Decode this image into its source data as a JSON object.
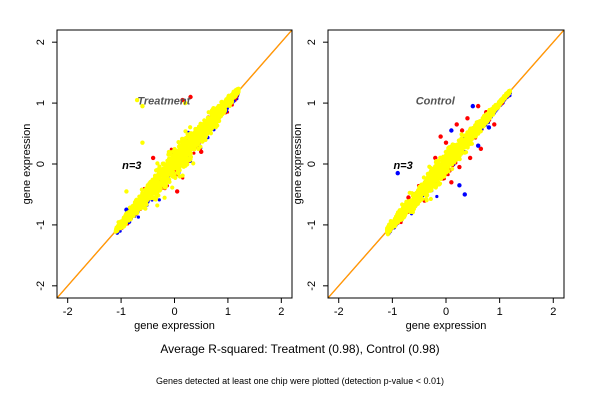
{
  "captions": {
    "summary": "Average R-squared: Treatment (0.98), Control (0.98)",
    "note": "Genes detected at least one chip were plotted (detection p-value < 0.01)"
  },
  "colors": {
    "point_main": "#ffff00",
    "point_red": "#ff0000",
    "point_blue": "#0000ff",
    "line_identity": "#ff0000",
    "line_fit": "#ffa500"
  },
  "chart_data": [
    {
      "type": "scatter",
      "title": "",
      "panel_label": "Treatment",
      "annotation": "n=3",
      "xlabel": "gene expression",
      "ylabel": "gene expression",
      "xlim": [
        -2.2,
        2.2
      ],
      "ylim": [
        -2.2,
        2.2
      ],
      "xticks": [
        -2,
        -1,
        0,
        1,
        2
      ],
      "yticks": [
        -2,
        -1,
        0,
        1,
        2
      ],
      "grid": false,
      "reference_lines": [
        {
          "name": "identity",
          "slope": 1,
          "intercept": 0,
          "color": "#ff0000"
        },
        {
          "name": "fit",
          "slope": 1,
          "intercept": 0,
          "color": "#ffa500"
        }
      ],
      "point_cloud": {
        "x_range": [
          -1.1,
          1.2
        ],
        "center": [
          0.05,
          0.1
        ],
        "max_spread": 0.3,
        "outlier_reach": 0.45
      },
      "series": [
        {
          "color": "#ff0000",
          "values": [
            [
              0.15,
              1.05
            ],
            [
              0.3,
              1.1
            ],
            [
              -0.4,
              0.1
            ],
            [
              -0.2,
              -0.3
            ],
            [
              0.5,
              0.2
            ],
            [
              0.05,
              -0.45
            ]
          ]
        },
        {
          "color": "#0000ff",
          "values": [
            [
              -0.9,
              -0.75
            ],
            [
              -0.85,
              -0.95
            ],
            [
              -0.3,
              -0.4
            ],
            [
              0.6,
              0.45
            ]
          ]
        },
        {
          "color": "#ffff00",
          "values": [
            [
              -1.05,
              -1.05
            ],
            [
              -0.95,
              -0.9
            ],
            [
              -0.8,
              -0.85
            ],
            [
              -0.6,
              -0.55
            ],
            [
              -0.5,
              -0.35
            ],
            [
              -0.4,
              -0.45
            ],
            [
              -0.3,
              -0.1
            ],
            [
              -0.2,
              -0.25
            ],
            [
              -0.1,
              0.05
            ],
            [
              0.0,
              0.1
            ],
            [
              0.1,
              0.3
            ],
            [
              0.2,
              0.2
            ],
            [
              0.3,
              0.45
            ],
            [
              0.4,
              0.35
            ],
            [
              0.5,
              0.6
            ],
            [
              0.7,
              0.75
            ],
            [
              0.9,
              0.95
            ],
            [
              1.1,
              1.15
            ],
            [
              -0.7,
              1.05
            ],
            [
              -0.6,
              0.95
            ],
            [
              0.2,
              1.0
            ],
            [
              -0.6,
              0.35
            ],
            [
              -0.9,
              -0.45
            ]
          ]
        }
      ]
    },
    {
      "type": "scatter",
      "title": "",
      "panel_label": "Control",
      "annotation": "n=3",
      "xlabel": "gene expression",
      "ylabel": "gene expression",
      "xlim": [
        -2.2,
        2.2
      ],
      "ylim": [
        -2.2,
        2.2
      ],
      "xticks": [
        -2,
        -1,
        0,
        1,
        2
      ],
      "yticks": [
        -2,
        -1,
        0,
        1,
        2
      ],
      "grid": false,
      "reference_lines": [
        {
          "name": "identity",
          "slope": 1,
          "intercept": 0,
          "color": "#ff0000"
        },
        {
          "name": "fit",
          "slope": 1,
          "intercept": 0,
          "color": "#ffa500"
        }
      ],
      "point_cloud": {
        "x_range": [
          -1.1,
          1.2
        ],
        "center": [
          -0.1,
          -0.1
        ],
        "max_spread": 0.22,
        "outlier_reach": 0.35
      },
      "series": [
        {
          "color": "#ff0000",
          "values": [
            [
              0.4,
              0.75
            ],
            [
              0.6,
              0.95
            ],
            [
              0.75,
              0.85
            ],
            [
              0.3,
              0.55
            ],
            [
              -0.2,
              0.1
            ],
            [
              0.0,
              0.35
            ],
            [
              0.25,
              -0.05
            ],
            [
              0.45,
              0.1
            ],
            [
              -0.4,
              -0.6
            ],
            [
              -0.7,
              -0.55
            ],
            [
              0.9,
              0.65
            ],
            [
              0.55,
              0.55
            ],
            [
              0.1,
              -0.3
            ],
            [
              -0.1,
              0.45
            ],
            [
              0.65,
              0.25
            ],
            [
              0.2,
              0.65
            ]
          ]
        },
        {
          "color": "#0000ff",
          "values": [
            [
              0.25,
              -0.35
            ],
            [
              0.35,
              -0.5
            ],
            [
              -0.9,
              -0.15
            ],
            [
              0.5,
              0.95
            ],
            [
              -0.6,
              -0.5
            ],
            [
              0.8,
              0.6
            ],
            [
              -0.2,
              -0.35
            ],
            [
              0.6,
              0.3
            ],
            [
              0.1,
              0.55
            ]
          ]
        },
        {
          "color": "#ffff00",
          "values": [
            [
              -1.05,
              -1.05
            ],
            [
              -0.95,
              -0.9
            ],
            [
              -0.8,
              -0.85
            ],
            [
              -0.65,
              -0.6
            ],
            [
              -0.5,
              -0.45
            ],
            [
              -0.4,
              -0.35
            ],
            [
              -0.3,
              -0.25
            ],
            [
              -0.2,
              -0.15
            ],
            [
              -0.1,
              -0.05
            ],
            [
              0.0,
              0.05
            ],
            [
              0.2,
              0.25
            ],
            [
              0.4,
              0.45
            ],
            [
              0.6,
              0.65
            ],
            [
              0.8,
              0.85
            ],
            [
              1.0,
              1.0
            ],
            [
              1.1,
              1.1
            ]
          ]
        }
      ]
    }
  ]
}
